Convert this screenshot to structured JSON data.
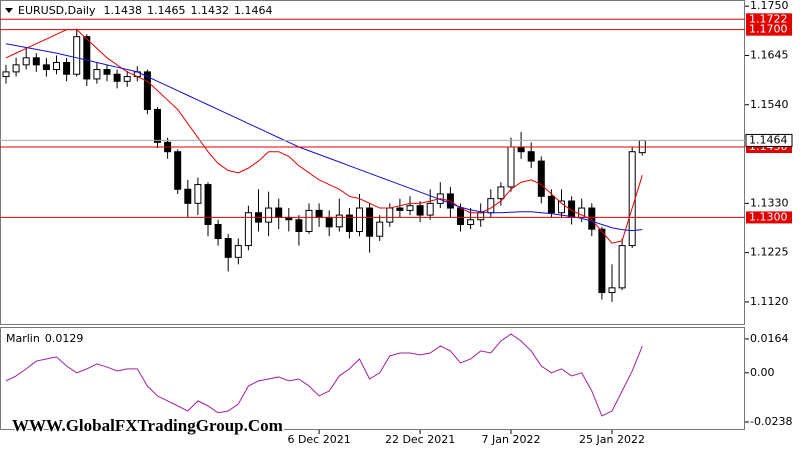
{
  "chart_data": {
    "type": "candlestick",
    "title": "EURUSD,Daily",
    "watermark": "WWW.GlobalFXTradingGroup.Com",
    "categories": [
      null,
      null,
      null,
      null,
      null,
      null,
      null,
      null,
      null,
      null,
      null,
      null,
      null,
      null,
      null,
      null,
      null,
      null,
      null,
      null,
      null,
      null,
      null,
      null,
      null,
      null,
      null,
      null,
      null,
      null,
      null,
      "6 Dec 2021",
      null,
      null,
      null,
      null,
      null,
      null,
      null,
      null,
      null,
      "22 Dec 2021",
      null,
      null,
      null,
      null,
      null,
      null,
      null,
      null,
      "7 Jan 2022",
      null,
      null,
      null,
      null,
      null,
      null,
      null,
      null,
      null,
      "25 Jan 2022",
      null,
      null,
      null
    ],
    "open": [
      1.16,
      1.161,
      1.1625,
      1.164,
      1.1625,
      1.1615,
      1.163,
      1.1605,
      1.1685,
      1.1595,
      1.1615,
      1.1605,
      1.159,
      1.16,
      1.161,
      1.153,
      1.146,
      1.144,
      1.136,
      1.133,
      1.137,
      1.1285,
      1.1255,
      1.1215,
      1.124,
      1.131,
      1.129,
      1.132,
      1.13,
      1.1295,
      1.127,
      1.1315,
      1.13,
      1.128,
      1.1305,
      1.127,
      1.132,
      1.126,
      1.129,
      1.132,
      1.1315,
      1.1325,
      1.1305,
      1.133,
      1.135,
      1.132,
      1.1285,
      1.1295,
      1.131,
      1.134,
      1.1365,
      1.145,
      1.144,
      1.142,
      1.1345,
      1.131,
      1.1335,
      1.13,
      1.132,
      1.1275,
      1.114,
      1.115,
      1.124,
      1.1438
    ],
    "high": [
      1.1625,
      1.164,
      1.166,
      1.165,
      1.164,
      1.1645,
      1.164,
      1.1702,
      1.169,
      1.163,
      1.1625,
      1.1615,
      1.1612,
      1.1622,
      1.1615,
      1.1535,
      1.147,
      1.1445,
      1.138,
      1.1385,
      1.1375,
      1.1295,
      1.1265,
      1.1255,
      1.1325,
      1.136,
      1.1355,
      1.134,
      1.132,
      1.1305,
      1.133,
      1.133,
      1.1315,
      1.134,
      1.132,
      1.135,
      1.133,
      1.1305,
      1.133,
      1.134,
      1.1345,
      1.1335,
      1.136,
      1.1375,
      1.1365,
      1.133,
      1.132,
      1.133,
      1.136,
      1.1375,
      1.147,
      1.1482,
      1.146,
      1.143,
      1.136,
      1.136,
      1.1345,
      1.134,
      1.133,
      1.128,
      1.12,
      1.1255,
      1.145,
      1.1465
    ],
    "low": [
      1.1585,
      1.16,
      1.1615,
      1.161,
      1.16,
      1.1605,
      1.159,
      1.16,
      1.158,
      1.1585,
      1.159,
      1.1575,
      1.1578,
      1.159,
      1.152,
      1.1448,
      1.1425,
      1.135,
      1.13,
      1.1305,
      1.126,
      1.124,
      1.1185,
      1.12,
      1.123,
      1.127,
      1.126,
      1.1275,
      1.127,
      1.124,
      1.1265,
      1.128,
      1.126,
      1.127,
      1.1255,
      1.126,
      1.1225,
      1.125,
      1.128,
      1.13,
      1.1305,
      1.129,
      1.1295,
      1.132,
      1.13,
      1.127,
      1.1275,
      1.128,
      1.13,
      1.1325,
      1.1355,
      1.1425,
      1.1405,
      1.133,
      1.13,
      1.13,
      1.1285,
      1.129,
      1.126,
      1.1125,
      1.112,
      1.1145,
      1.1235,
      1.1432
    ],
    "close": [
      1.161,
      1.1625,
      1.164,
      1.1625,
      1.1615,
      1.163,
      1.1605,
      1.1685,
      1.1595,
      1.1615,
      1.1605,
      1.159,
      1.16,
      1.161,
      1.153,
      1.146,
      1.144,
      1.136,
      1.133,
      1.137,
      1.1285,
      1.1255,
      1.1215,
      1.124,
      1.131,
      1.129,
      1.132,
      1.13,
      1.1295,
      1.127,
      1.1315,
      1.13,
      1.128,
      1.1305,
      1.127,
      1.132,
      1.126,
      1.129,
      1.132,
      1.1315,
      1.1325,
      1.1305,
      1.133,
      1.135,
      1.132,
      1.1285,
      1.1295,
      1.131,
      1.134,
      1.1365,
      1.145,
      1.144,
      1.142,
      1.1345,
      1.131,
      1.1335,
      1.13,
      1.132,
      1.1275,
      1.114,
      1.115,
      1.124,
      1.144,
      1.1464
    ],
    "overlays": [
      {
        "color": "#e00000",
        "values": [
          1.164,
          1.165,
          1.166,
          1.167,
          1.168,
          1.169,
          1.17,
          1.17,
          1.168,
          1.166,
          1.164,
          1.1625,
          1.161,
          1.16,
          1.159,
          1.157,
          1.155,
          1.153,
          1.15,
          1.147,
          1.144,
          1.1415,
          1.14,
          1.1395,
          1.1405,
          1.142,
          1.144,
          1.144,
          1.143,
          1.141,
          1.1395,
          1.138,
          1.137,
          1.136,
          1.1345,
          1.134,
          1.133,
          1.132,
          1.132,
          1.1325,
          1.133,
          1.133,
          1.1335,
          1.134,
          1.1335,
          1.132,
          1.131,
          1.131,
          1.132,
          1.1335,
          1.136,
          1.1375,
          1.138,
          1.137,
          1.135,
          1.133,
          1.1315,
          1.1305,
          1.1295,
          1.127,
          1.1245,
          1.125,
          1.132,
          1.139
        ]
      },
      {
        "color": "#1010d0",
        "values": [
          1.167,
          1.1666,
          1.1662,
          1.1658,
          1.1654,
          1.165,
          1.1645,
          1.164,
          1.1635,
          1.163,
          1.1625,
          1.162,
          1.1615,
          1.161,
          1.16,
          1.159,
          1.158,
          1.157,
          1.156,
          1.155,
          1.154,
          1.153,
          1.152,
          1.151,
          1.15,
          1.149,
          1.148,
          1.147,
          1.146,
          1.145,
          1.1442,
          1.1434,
          1.1426,
          1.1418,
          1.141,
          1.1402,
          1.1394,
          1.1386,
          1.1378,
          1.137,
          1.1362,
          1.1354,
          1.1346,
          1.1338,
          1.133,
          1.1322,
          1.1316,
          1.1312,
          1.131,
          1.131,
          1.1311,
          1.1312,
          1.1312,
          1.131,
          1.1308,
          1.1305,
          1.1302,
          1.1298,
          1.1292,
          1.1285,
          1.1278,
          1.1274,
          1.1272,
          1.1274
        ]
      }
    ],
    "levels": [
      1.1722,
      {
        "value": 1.17,
        "label": "1.1700"
      },
      {
        "value": 1.145,
        "label": "1.1450"
      },
      {
        "value": 1.13,
        "label": "1.1300"
      }
    ],
    "level_color": "#e00000",
    "ylim": [
      1.1073,
      1.1761
    ],
    "yticks": [
      {
        "value": 1.175,
        "label": "1.1750"
      },
      1.1645,
      {
        "value": 1.154,
        "label": "1.1540"
      },
      {
        "value": 1.133,
        "label": "1.1330"
      },
      1.1225,
      {
        "value": 1.112,
        "label": "1.1120"
      }
    ],
    "indicator": {
      "name": "Marlin",
      "color": "#a020a0",
      "values": [
        -0.0039,
        -0.0015,
        0.0019,
        0.0057,
        0.0067,
        0.0077,
        0.0033,
        0.0,
        0.0019,
        0.0043,
        0.0028,
        0.0009,
        0.0019,
        0.0019,
        -0.0064,
        -0.0112,
        -0.0136,
        -0.016,
        -0.0185,
        -0.0136,
        -0.016,
        -0.0194,
        -0.0185,
        -0.0151,
        -0.0064,
        -0.0039,
        -0.003,
        -0.002,
        -0.0039,
        -0.003,
        -0.0064,
        -0.0112,
        -0.0088,
        -0.0015,
        0.0019,
        0.0067,
        -0.003,
        0.0,
        0.0082,
        0.0096,
        0.0096,
        0.0087,
        0.0096,
        0.013,
        0.0106,
        0.0048,
        0.0067,
        0.0106,
        0.0096,
        0.0154,
        0.0188,
        0.0154,
        0.0106,
        0.0033,
        0.0,
        0.0019,
        -0.0015,
        0.0,
        -0.0088,
        -0.0209,
        -0.0185,
        -0.0088,
        0.0009,
        0.0129
      ],
      "ylim": [
        -0.0272,
        0.0217
      ],
      "yticks": [
        0.0164,
        {
          "value": 0,
          "label": "0.00"
        },
        -0.0238
      ]
    }
  }
}
